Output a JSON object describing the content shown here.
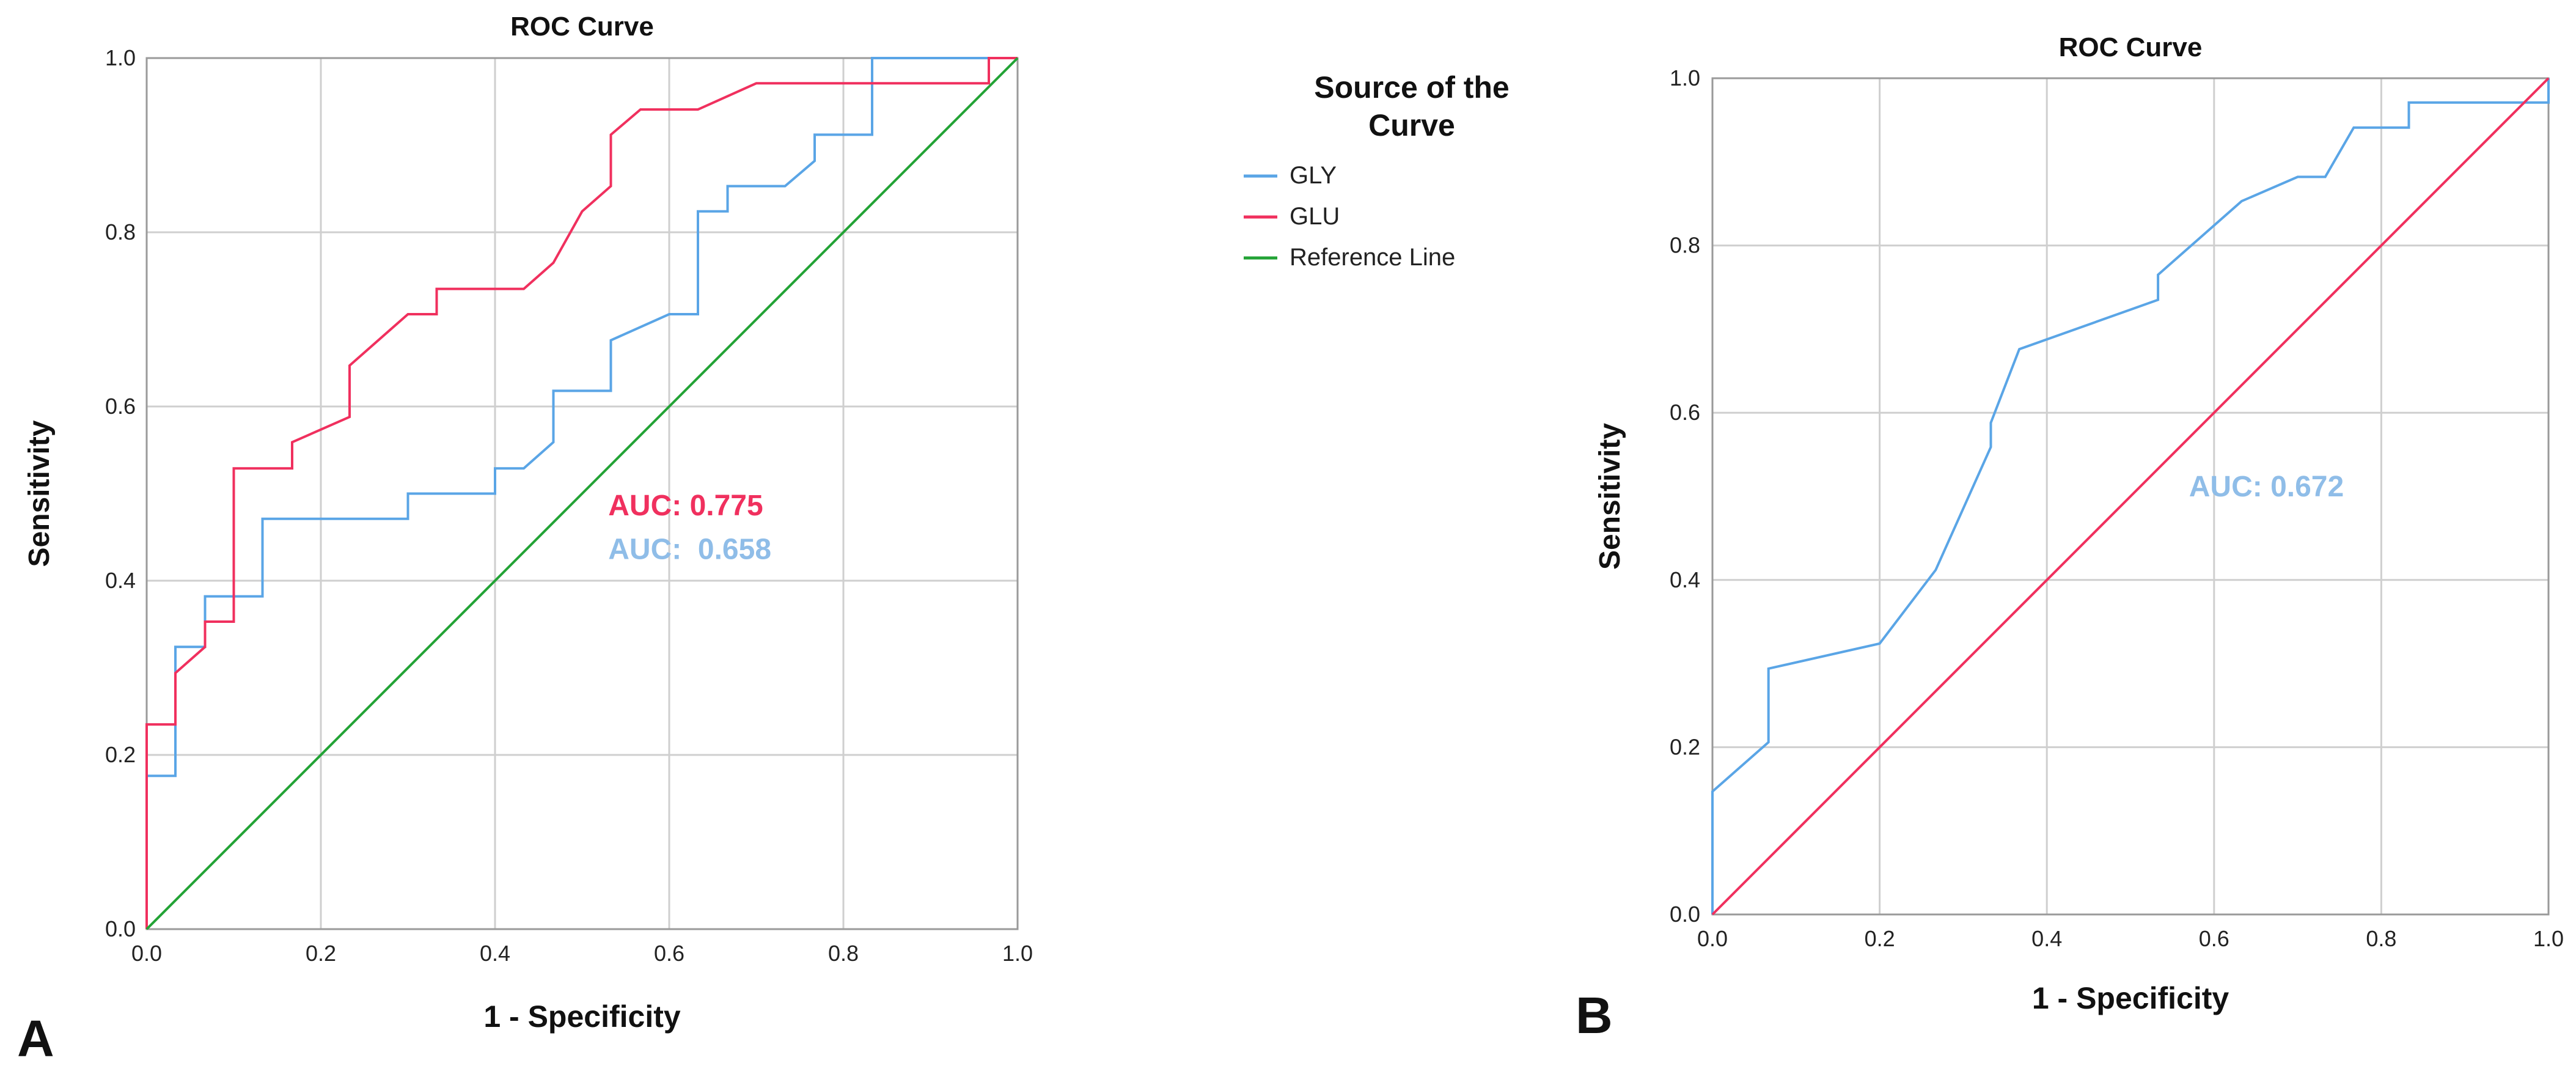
{
  "panel_labels": [
    "A",
    "B"
  ],
  "legend": {
    "title_lines": [
      "Source of the",
      "Curve"
    ],
    "entries": [
      {
        "label": "GLY",
        "color": "#5aa5e6"
      },
      {
        "label": "GLU",
        "color": "#f0305e"
      },
      {
        "label": "Reference Line",
        "color": "#23a336"
      }
    ]
  },
  "chart_data": [
    {
      "type": "line",
      "title": "ROC Curve",
      "xlabel": "1 - Specificity",
      "ylabel": "Sensitivity",
      "xlim": [
        0,
        1
      ],
      "ylim": [
        0,
        1
      ],
      "xticks": [
        "0.0",
        "0.2",
        "0.4",
        "0.6",
        "0.8",
        "1.0"
      ],
      "yticks": [
        "0.0",
        "0.2",
        "0.4",
        "0.6",
        "0.8",
        "1.0"
      ],
      "grid": true,
      "series": [
        {
          "name": "GLY",
          "color": "#5aa5e6",
          "x": [
            0,
            0,
            0.033,
            0.033,
            0.067,
            0.067,
            0.133,
            0.133,
            0.3,
            0.3,
            0.4,
            0.4,
            0.433,
            0.467,
            0.467,
            0.533,
            0.533,
            0.6,
            0.633,
            0.633,
            0.667,
            0.667,
            0.733,
            0.767,
            0.767,
            0.833,
            0.833,
            1.0
          ],
          "y": [
            0,
            0.176,
            0.176,
            0.324,
            0.324,
            0.382,
            0.382,
            0.471,
            0.471,
            0.5,
            0.5,
            0.529,
            0.529,
            0.559,
            0.618,
            0.618,
            0.676,
            0.706,
            0.706,
            0.824,
            0.824,
            0.853,
            0.853,
            0.882,
            0.912,
            0.912,
            1.0,
            1.0
          ]
        },
        {
          "name": "GLU",
          "color": "#f0305e",
          "x": [
            0,
            0,
            0.033,
            0.033,
            0.067,
            0.067,
            0.1,
            0.1,
            0.167,
            0.167,
            0.233,
            0.233,
            0.3,
            0.333,
            0.333,
            0.433,
            0.467,
            0.5,
            0.533,
            0.533,
            0.567,
            0.633,
            0.7,
            0.967,
            0.967,
            1.0
          ],
          "y": [
            0,
            0.235,
            0.235,
            0.294,
            0.324,
            0.353,
            0.353,
            0.529,
            0.529,
            0.559,
            0.588,
            0.647,
            0.706,
            0.706,
            0.735,
            0.735,
            0.765,
            0.824,
            0.853,
            0.912,
            0.941,
            0.941,
            0.971,
            0.971,
            1.0,
            1.0
          ]
        },
        {
          "name": "Reference Line",
          "color": "#23a336",
          "x": [
            0,
            1
          ],
          "y": [
            0,
            1
          ]
        }
      ],
      "annotations": [
        {
          "text": "AUC: 0.775",
          "color": "#f0305e",
          "x": 0.53,
          "y": 0.475
        },
        {
          "text": "AUC:  0.658",
          "color": "#8fbde8",
          "x": 0.53,
          "y": 0.425
        }
      ]
    },
    {
      "type": "line",
      "title": "ROC Curve",
      "xlabel": "1 - Specificity",
      "ylabel": "Sensitivity",
      "xlim": [
        0,
        1
      ],
      "ylim": [
        0,
        1
      ],
      "xticks": [
        "0.0",
        "0.2",
        "0.4",
        "0.6",
        "0.8",
        "1.0"
      ],
      "yticks": [
        "0.0",
        "0.2",
        "0.4",
        "0.6",
        "0.8",
        "1.0"
      ],
      "grid": true,
      "series": [
        {
          "color": "#5aa5e6",
          "x": [
            0,
            0,
            0.067,
            0.067,
            0.2,
            0.267,
            0.333,
            0.333,
            0.367,
            0.533,
            0.533,
            0.633,
            0.7,
            0.733,
            0.767,
            0.833,
            0.833,
            1.0,
            1.0
          ],
          "y": [
            0,
            0.147,
            0.206,
            0.294,
            0.324,
            0.412,
            0.559,
            0.588,
            0.676,
            0.735,
            0.765,
            0.853,
            0.882,
            0.882,
            0.941,
            0.941,
            0.971,
            0.971,
            1.0
          ]
        },
        {
          "color": "#f0305e",
          "x": [
            0,
            1
          ],
          "y": [
            0,
            1
          ]
        }
      ],
      "annotations": [
        {
          "text": "AUC: 0.672",
          "color": "#8fbde8",
          "x": 0.57,
          "y": 0.5
        }
      ]
    }
  ]
}
